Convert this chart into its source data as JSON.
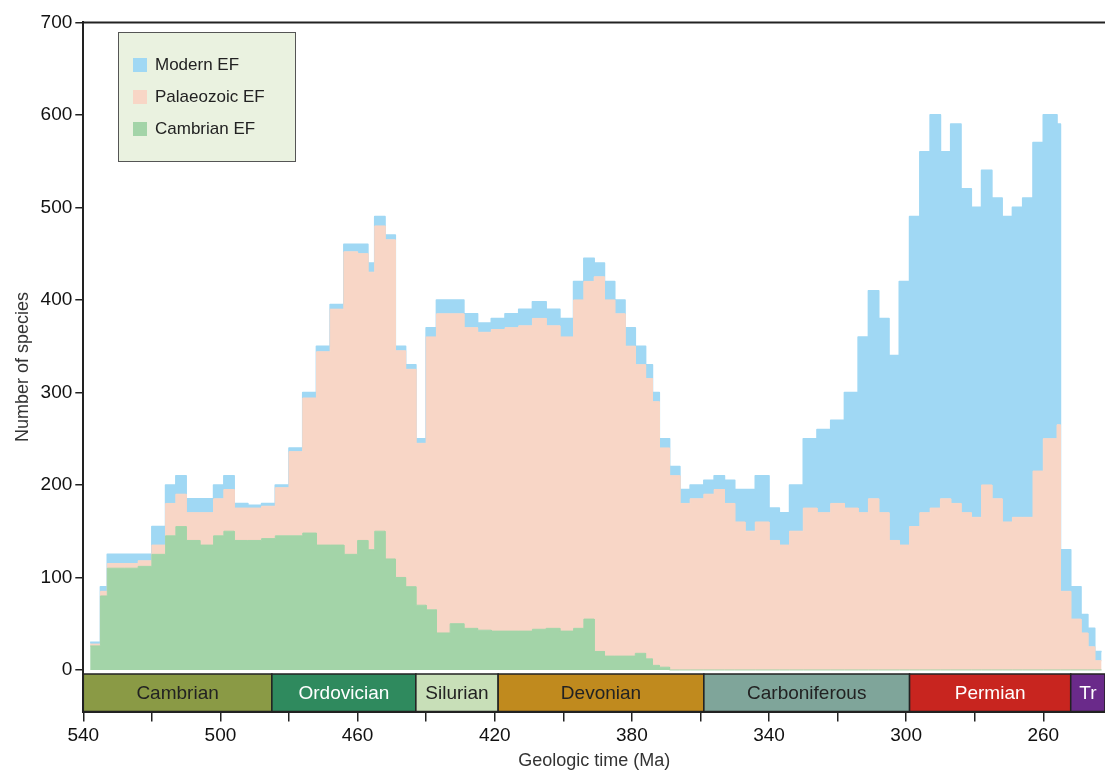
{
  "chart_data": {
    "type": "area",
    "stacked": true,
    "xlabel": "Geologic time (Ma)",
    "ylabel": "Number of species",
    "x": [
      538,
      535,
      535,
      533,
      533,
      528,
      528,
      524,
      524,
      520,
      520,
      516,
      516,
      513,
      513,
      510,
      510,
      506,
      506,
      502,
      502,
      499,
      499,
      496,
      496,
      492,
      492,
      488,
      488,
      484,
      484,
      480,
      480,
      476,
      476,
      472,
      472,
      468,
      468,
      464,
      464,
      460,
      460,
      457,
      457,
      455,
      455,
      452,
      452,
      449,
      449,
      446,
      446,
      443,
      443,
      440,
      440,
      437,
      437,
      433,
      433,
      429,
      429,
      425,
      425,
      421,
      421,
      417,
      417,
      413,
      413,
      409,
      409,
      405,
      405,
      401,
      401,
      397,
      397,
      394,
      394,
      391,
      391,
      388,
      388,
      385,
      385,
      382,
      382,
      379,
      379,
      376,
      376,
      374,
      374,
      372,
      372,
      369,
      369,
      366,
      366,
      363,
      363,
      359,
      359,
      356,
      356,
      353,
      353,
      350,
      350,
      347,
      347,
      344,
      344,
      340,
      340,
      337,
      337,
      334,
      334,
      330,
      330,
      326,
      326,
      322,
      322,
      318,
      318,
      314,
      314,
      311,
      311,
      308,
      308,
      305,
      305,
      302,
      302,
      299,
      299,
      296,
      296,
      293,
      293,
      290,
      290,
      287,
      287,
      284,
      284,
      281,
      281,
      278,
      278,
      275,
      275,
      272,
      272,
      269,
      269,
      266,
      266,
      263,
      263,
      260,
      260,
      256,
      256,
      255,
      255,
      252,
      252,
      249,
      249,
      247,
      247,
      245,
      245,
      243
    ],
    "series": [
      {
        "name": "Cambrian EF",
        "color": "#a3d4a8",
        "values": [
          26,
          26,
          80,
          80,
          110,
          110,
          110,
          110,
          112,
          112,
          125,
          125,
          145,
          145,
          155,
          155,
          140,
          140,
          135,
          135,
          145,
          145,
          150,
          150,
          140,
          140,
          140,
          140,
          142,
          142,
          145,
          145,
          145,
          145,
          148,
          148,
          135,
          135,
          135,
          135,
          125,
          125,
          140,
          140,
          130,
          130,
          150,
          150,
          120,
          120,
          100,
          100,
          90,
          90,
          70,
          70,
          65,
          65,
          40,
          40,
          50,
          50,
          45,
          45,
          43,
          43,
          42,
          42,
          42,
          42,
          42,
          42,
          44,
          44,
          45,
          45,
          42,
          42,
          45,
          45,
          55,
          55,
          20,
          20,
          15,
          15,
          15,
          15,
          15,
          15,
          18,
          18,
          12,
          12,
          5,
          5,
          3,
          3,
          0,
          0,
          0,
          0,
          0,
          0,
          0,
          0,
          0,
          0,
          0,
          0,
          0,
          0,
          0,
          0,
          0,
          0,
          0,
          0,
          0,
          0,
          0,
          0,
          0,
          0,
          0,
          0,
          0,
          0,
          0,
          0,
          0,
          0,
          0,
          0,
          0,
          0,
          0,
          0,
          0,
          0,
          0,
          0,
          0,
          0,
          0,
          0,
          0,
          0,
          0,
          0,
          0,
          0,
          0,
          0,
          0,
          0,
          0,
          0,
          0,
          0,
          0,
          0,
          0,
          0,
          0,
          0,
          0,
          0,
          0,
          0,
          0,
          0,
          0,
          0,
          0,
          0,
          0,
          0,
          0,
          0
        ]
      },
      {
        "name": "Palaeozoic EF",
        "color": "#f8d6c6",
        "values": [
          2,
          2,
          5,
          5,
          5,
          5,
          5,
          5,
          6,
          6,
          10,
          10,
          35,
          35,
          35,
          35,
          30,
          30,
          35,
          35,
          40,
          40,
          45,
          45,
          35,
          35,
          35,
          35,
          35,
          35,
          52,
          52,
          91,
          91,
          146,
          146,
          209,
          209,
          255,
          255,
          327,
          327,
          310,
          310,
          300,
          300,
          330,
          330,
          345,
          345,
          245,
          245,
          235,
          235,
          175,
          175,
          295,
          295,
          345,
          345,
          335,
          335,
          325,
          325,
          322,
          322,
          326,
          326,
          328,
          328,
          330,
          330,
          336,
          336,
          327,
          327,
          318,
          318,
          355,
          355,
          365,
          365,
          405,
          405,
          385,
          385,
          370,
          370,
          335,
          335,
          312,
          312,
          303,
          303,
          285,
          285,
          237,
          237,
          210,
          210,
          180,
          180,
          185,
          185,
          190,
          190,
          195,
          195,
          180,
          180,
          160,
          160,
          150,
          150,
          160,
          160,
          140,
          140,
          135,
          135,
          150,
          150,
          175,
          175,
          170,
          170,
          180,
          180,
          175,
          175,
          170,
          170,
          185,
          185,
          170,
          170,
          140,
          140,
          135,
          135,
          155,
          155,
          170,
          170,
          175,
          175,
          185,
          185,
          180,
          180,
          170,
          170,
          165,
          165,
          200,
          200,
          185,
          185,
          160,
          160,
          165,
          165,
          165,
          165,
          215,
          215,
          250,
          250,
          265,
          265,
          85,
          85,
          55,
          55,
          40,
          40,
          25,
          25,
          10,
          10
        ]
      },
      {
        "name": "Modern EF",
        "color": "#a0d8f4",
        "values": [
          2,
          2,
          5,
          5,
          10,
          10,
          10,
          10,
          7,
          7,
          20,
          20,
          20,
          20,
          20,
          20,
          15,
          15,
          15,
          15,
          15,
          15,
          15,
          15,
          5,
          5,
          3,
          3,
          3,
          3,
          3,
          3,
          4,
          4,
          6,
          6,
          6,
          6,
          5,
          5,
          8,
          8,
          10,
          10,
          10,
          10,
          10,
          10,
          5,
          5,
          5,
          5,
          5,
          5,
          5,
          5,
          10,
          10,
          15,
          15,
          15,
          15,
          15,
          15,
          10,
          10,
          12,
          12,
          15,
          15,
          18,
          18,
          18,
          18,
          18,
          18,
          20,
          20,
          20,
          20,
          25,
          25,
          15,
          15,
          20,
          20,
          15,
          15,
          20,
          20,
          20,
          20,
          15,
          15,
          10,
          10,
          10,
          10,
          10,
          10,
          15,
          15,
          15,
          15,
          15,
          15,
          15,
          15,
          25,
          25,
          35,
          35,
          45,
          45,
          50,
          50,
          35,
          35,
          35,
          35,
          50,
          50,
          75,
          75,
          90,
          90,
          90,
          90,
          125,
          125,
          190,
          190,
          225,
          225,
          210,
          210,
          200,
          200,
          285,
          285,
          335,
          335,
          390,
          390,
          425,
          425,
          375,
          375,
          410,
          410,
          350,
          350,
          335,
          335,
          340,
          340,
          325,
          325,
          330,
          330,
          335,
          335,
          345,
          345,
          355,
          355,
          350,
          350,
          325,
          325,
          45,
          45,
          35,
          35,
          20,
          20,
          20,
          20,
          10,
          10
        ]
      }
    ],
    "xlim": [
      540,
      242
    ],
    "xticks": [
      540,
      {
        "value": 520,
        "label": null
      },
      500,
      {
        "value": 480,
        "label": null
      },
      460,
      {
        "value": 440,
        "label": null
      },
      420,
      {
        "value": 400,
        "label": null
      },
      380,
      {
        "value": 360,
        "label": null
      },
      340,
      {
        "value": 320,
        "label": null
      },
      300,
      {
        "value": 280,
        "label": null
      },
      260
    ],
    "ylim": [
      -45,
      700
    ],
    "yticks": [
      0,
      100,
      200,
      300,
      400,
      500,
      600,
      700
    ],
    "bands": [
      {
        "axis": "x",
        "from": 540,
        "to": 485,
        "label": "Cambrian",
        "color": "#8a9a45"
      },
      {
        "axis": "x",
        "from": 485,
        "to": 443,
        "label": "Ordovician",
        "color": "#2f8a5e"
      },
      {
        "axis": "x",
        "from": 443,
        "to": 419,
        "label": "Silurian",
        "color": "#c8dfb8"
      },
      {
        "axis": "x",
        "from": 419,
        "to": 359,
        "label": "Devonian",
        "color": "#c08a1e"
      },
      {
        "axis": "x",
        "from": 359,
        "to": 299,
        "label": "Carboniferous",
        "color": "#7fa59a"
      },
      {
        "axis": "x",
        "from": 299,
        "to": 252,
        "label": "Permian",
        "color": "#c8251f"
      },
      {
        "axis": "x",
        "from": 252,
        "to": 242,
        "label": "Tr",
        "color": "#6a2a8a"
      }
    ],
    "grid": false,
    "legend": "top left"
  }
}
